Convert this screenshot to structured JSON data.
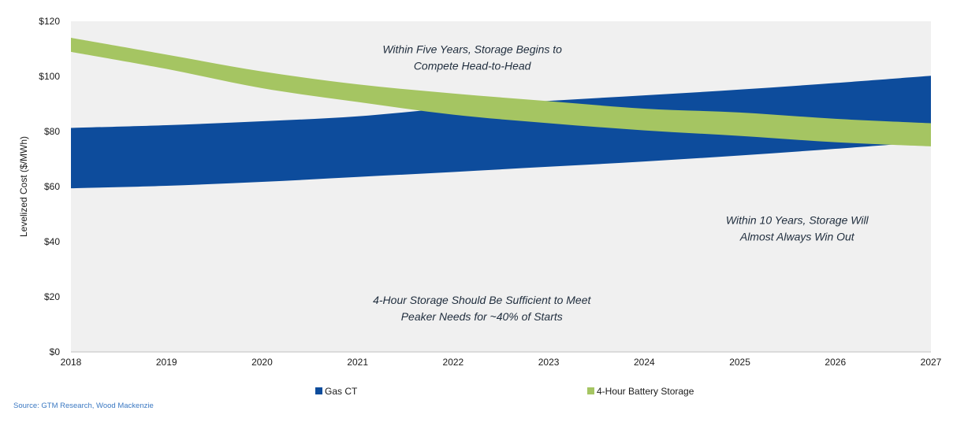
{
  "chart_data": {
    "type": "area",
    "title": "",
    "xlabel": "",
    "ylabel": "Levelized Cost ($/MWh)",
    "x": [
      2018,
      2019,
      2020,
      2021,
      2022,
      2023,
      2024,
      2025,
      2026,
      2027
    ],
    "x_tick_labels": [
      "2018",
      "2019",
      "2020",
      "2021",
      "2022",
      "2023",
      "2024",
      "2025",
      "2026",
      "2027"
    ],
    "ylim": [
      0,
      120
    ],
    "y_tick_values": [
      0,
      20,
      40,
      60,
      80,
      100,
      120
    ],
    "y_tick_labels": [
      "$0",
      "$20",
      "$40",
      "$60",
      "$80",
      "$100",
      "$120"
    ],
    "grid": false,
    "legend_position": "bottom",
    "series": [
      {
        "name": "Gas CT",
        "color": "#0d4c9c",
        "low": [
          59.4,
          60.3,
          61.7,
          63.5,
          65.3,
          67.2,
          69.1,
          71.3,
          73.7,
          76.3
        ],
        "high": [
          81.3,
          82.3,
          83.7,
          85.5,
          88.6,
          91.1,
          93.1,
          95.2,
          97.6,
          100.2
        ]
      },
      {
        "name": "4-Hour Battery Storage",
        "color": "#a5c562",
        "low": [
          108.9,
          102.7,
          95.7,
          90.7,
          86.1,
          83.0,
          80.4,
          78.4,
          76.1,
          74.6
        ],
        "high": [
          114.0,
          107.9,
          101.8,
          97.1,
          93.8,
          91.0,
          88.3,
          86.9,
          84.6,
          83.0
        ]
      }
    ],
    "annotations": [
      {
        "lines": [
          "Within Five Years, Storage Begins to",
          "Compete Head-to-Head"
        ],
        "x": 2022.2,
        "y": 108.5
      },
      {
        "lines": [
          "Within 10 Years, Storage Will",
          "Almost Always Win Out"
        ],
        "x": 2025.6,
        "y": 46.5
      },
      {
        "lines": [
          "4-Hour Storage Should Be Sufficient to Meet",
          "Peaker Needs for ~40% of Starts"
        ],
        "x": 2022.3,
        "y": 17.5
      }
    ]
  },
  "source_note": "Source: GTM Research, Wood Mackenzie"
}
